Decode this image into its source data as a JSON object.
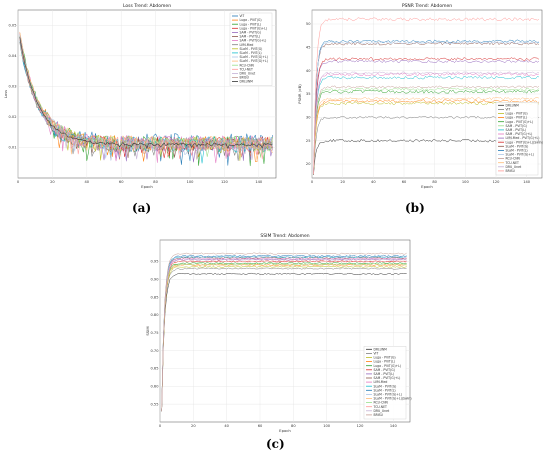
{
  "chart_data": [
    {
      "id": "a",
      "type": "line",
      "title": "Loss Trend: Abdomen",
      "xlabel": "Epoch",
      "ylabel": "Loss",
      "xlim": [
        0,
        150
      ],
      "ylim": [
        0.0,
        0.055
      ],
      "xticks": [
        0,
        20,
        40,
        60,
        80,
        100,
        120,
        140
      ],
      "yticks": [
        0.01,
        0.02,
        0.03,
        0.04,
        0.05
      ],
      "ytick_labels": [
        "0.01",
        "0.02",
        "0.03",
        "0.04",
        "0.05"
      ],
      "grid": true,
      "legend_position": "top-right",
      "series": [
        {
          "name": "ViT",
          "color": "#1f77b4",
          "start": 0.045,
          "final": 0.0115,
          "noise": 0.003
        },
        {
          "name": "Luga - PViT(G)",
          "color": "#ff7f0e",
          "start": 0.046,
          "final": 0.0112,
          "noise": 0.0025
        },
        {
          "name": "Luga - PViT(L)",
          "color": "#2ca02c",
          "start": 0.047,
          "final": 0.011,
          "noise": 0.0028
        },
        {
          "name": "Luga - PViT(G)+L)",
          "color": "#d62728",
          "start": 0.046,
          "final": 0.0113,
          "noise": 0.0022
        },
        {
          "name": "SAM - PViT(G)",
          "color": "#9467bd",
          "start": 0.045,
          "final": 0.0111,
          "noise": 0.0024
        },
        {
          "name": "SAM - PViT(L)",
          "color": "#8c564b",
          "start": 0.046,
          "final": 0.0109,
          "noise": 0.002
        },
        {
          "name": "SAM - PViT(G)+L)",
          "color": "#e377c2",
          "start": 0.047,
          "final": 0.0112,
          "noise": 0.0026
        },
        {
          "name": "LVM-Med",
          "color": "#7f7f7f",
          "start": 0.044,
          "final": 0.0108,
          "noise": 0.002
        },
        {
          "name": "SLaM - PViT(G)",
          "color": "#bcbd22",
          "start": 0.046,
          "final": 0.0112,
          "noise": 0.0023
        },
        {
          "name": "SLaM - PViT(L)",
          "color": "#17becf",
          "start": 0.045,
          "final": 0.011,
          "noise": 0.0025
        },
        {
          "name": "SLaM - PViT(G)+L)",
          "color": "#aec7e8",
          "start": 0.046,
          "final": 0.0111,
          "noise": 0.0022
        },
        {
          "name": "SLaM - PViT(G)+L)",
          "color": "#ffbb78",
          "start": 0.047,
          "final": 0.0113,
          "noise": 0.0024
        },
        {
          "name": "RCU-CNN",
          "color": "#98df8a",
          "start": 0.046,
          "final": 0.0114,
          "noise": 0.0021
        },
        {
          "name": "TCU-NET",
          "color": "#ff9896",
          "start": 0.045,
          "final": 0.0112,
          "noise": 0.002
        },
        {
          "name": "DRU_Unet",
          "color": "#c5b0d5",
          "start": 0.046,
          "final": 0.0111,
          "noise": 0.0022
        },
        {
          "name": "BRISU",
          "color": "#c49c94",
          "start": 0.045,
          "final": 0.0112,
          "noise": 0.0021
        },
        {
          "name": "DRLUNM",
          "color": "#333333",
          "start": 0.046,
          "final": 0.011,
          "noise": 0.0005
        }
      ]
    },
    {
      "id": "b",
      "type": "line",
      "title": "PSNR Trend: Abdomen",
      "xlabel": "Epoch",
      "ylabel": "PSNR (dB)",
      "xlim": [
        0,
        150
      ],
      "ylim": [
        17,
        53
      ],
      "xticks": [
        0,
        20,
        40,
        60,
        80,
        100,
        120,
        140
      ],
      "yticks": [
        20,
        25,
        30,
        35,
        40,
        45,
        50
      ],
      "ytick_labels": [
        "20",
        "25",
        "30",
        "35",
        "40",
        "45",
        "50"
      ],
      "grid": true,
      "legend_position": "bottom-right",
      "series": [
        {
          "name": "DRLUNM",
          "color": "#333333",
          "start": 18,
          "final": 25,
          "noise": 0.3
        },
        {
          "name": "ViT",
          "color": "#7f7f7f",
          "start": 18,
          "final": 30,
          "noise": 0.25
        },
        {
          "name": "Luga - PViT(G)",
          "color": "#bcbd22",
          "start": 18,
          "final": 33,
          "noise": 0.3
        },
        {
          "name": "Luga - PViT(L)",
          "color": "#ff7f0e",
          "start": 18,
          "final": 33.5,
          "noise": 0.3
        },
        {
          "name": "Luga - PViT(G)+L)",
          "color": "#2ca02c",
          "start": 18,
          "final": 35.5,
          "noise": 0.35
        },
        {
          "name": "SAM - PViT(G)",
          "color": "#98df8a",
          "start": 18,
          "final": 36,
          "noise": 0.3
        },
        {
          "name": "SAM - PViT(L)",
          "color": "#17becf",
          "start": 18,
          "final": 38.5,
          "noise": 0.3
        },
        {
          "name": "SAM - PViT(G)+L)",
          "color": "#e377c2",
          "start": 18,
          "final": 39.2,
          "noise": 0.3
        },
        {
          "name": "LVM-Med - PViT(G)+L)",
          "color": "#9467bd",
          "start": 18,
          "final": 42,
          "noise": 0.3
        },
        {
          "name": "Luga - PViT(G)+L)(Swin)",
          "color": "#d62728",
          "start": 18,
          "final": 42.5,
          "noise": 0.3
        },
        {
          "name": "SLaM - PViT(G)",
          "color": "#8c564b",
          "start": 18,
          "final": 45.8,
          "noise": 0.3
        },
        {
          "name": "SLaM - PViT(L)",
          "color": "#1f77b4",
          "start": 18,
          "final": 46.3,
          "noise": 0.3
        },
        {
          "name": "SLaM - PViT(G)+L)",
          "color": "#aec7e8",
          "start": 18,
          "final": 46,
          "noise": 0.25
        },
        {
          "name": "RCU-CNN",
          "color": "#c49c94",
          "start": 18,
          "final": 36.5,
          "noise": 0.25
        },
        {
          "name": "TCU-NET",
          "color": "#ffbb78",
          "start": 18,
          "final": 34,
          "noise": 0.25
        },
        {
          "name": "DRU_Unet",
          "color": "#c5b0d5",
          "start": 18,
          "final": 39.5,
          "noise": 0.25
        },
        {
          "name": "BRISU",
          "color": "#ff9896",
          "start": 18,
          "final": 51,
          "noise": 0.35
        }
      ]
    },
    {
      "id": "c",
      "type": "line",
      "title": "SSIM Trend: Abdomen",
      "xlabel": "Epoch",
      "ylabel": "SSIM",
      "xlim": [
        0,
        150
      ],
      "ylim": [
        0.5,
        1.01
      ],
      "xticks": [
        0,
        20,
        40,
        60,
        80,
        100,
        120,
        140
      ],
      "yticks": [
        0.55,
        0.6,
        0.65,
        0.7,
        0.75,
        0.8,
        0.85,
        0.9,
        0.95
      ],
      "ytick_labels": [
        "0.55",
        "0.60",
        "0.65",
        "0.70",
        "0.75",
        "0.80",
        "0.85",
        "0.90",
        "0.95"
      ],
      "grid": true,
      "legend_position": "lower-right",
      "series": [
        {
          "name": "DRLUNM",
          "color": "#333333",
          "start": 0.53,
          "final": 0.915,
          "noise": 0.002
        },
        {
          "name": "ViT",
          "color": "#7f7f7f",
          "start": 0.53,
          "final": 0.93,
          "noise": 0.002
        },
        {
          "name": "Luga - PViT(G)",
          "color": "#bcbd22",
          "start": 0.53,
          "final": 0.935,
          "noise": 0.002
        },
        {
          "name": "Luga - PViT(L)",
          "color": "#ff7f0e",
          "start": 0.53,
          "final": 0.94,
          "noise": 0.002
        },
        {
          "name": "Luga - PViT(G)+L)",
          "color": "#2ca02c",
          "start": 0.53,
          "final": 0.945,
          "noise": 0.002
        },
        {
          "name": "SAM - PViT(G)",
          "color": "#d62728",
          "start": 0.53,
          "final": 0.95,
          "noise": 0.002
        },
        {
          "name": "SAM - PViT(L)",
          "color": "#9467bd",
          "start": 0.53,
          "final": 0.955,
          "noise": 0.002
        },
        {
          "name": "SAM - PViT(G)+L)",
          "color": "#8c564b",
          "start": 0.53,
          "final": 0.96,
          "noise": 0.002
        },
        {
          "name": "LVM-Med",
          "color": "#e377c2",
          "start": 0.53,
          "final": 0.958,
          "noise": 0.002
        },
        {
          "name": "SLaM - PViT(G)",
          "color": "#17becf",
          "start": 0.53,
          "final": 0.962,
          "noise": 0.002
        },
        {
          "name": "SLaM - PViT(L)",
          "color": "#1f77b4",
          "start": 0.53,
          "final": 0.965,
          "noise": 0.002
        },
        {
          "name": "SLaM - PViT(G)+L)",
          "color": "#aec7e8",
          "start": 0.53,
          "final": 0.963,
          "noise": 0.002
        },
        {
          "name": "SLaM - PViT(G)+L)(Swin)",
          "color": "#ffbb78",
          "start": 0.53,
          "final": 0.94,
          "noise": 0.002
        },
        {
          "name": "RCU-CNN",
          "color": "#98df8a",
          "start": 0.53,
          "final": 0.942,
          "noise": 0.002
        },
        {
          "name": "TCU-NET",
          "color": "#ff9896",
          "start": 0.53,
          "final": 0.95,
          "noise": 0.002
        },
        {
          "name": "DRU_Unet",
          "color": "#c5b0d5",
          "start": 0.53,
          "final": 0.955,
          "noise": 0.002
        },
        {
          "name": "BRISU",
          "color": "#c49c94",
          "start": 0.53,
          "final": 0.972,
          "noise": 0.002
        }
      ]
    }
  ],
  "captions": {
    "a": "(a)",
    "b": "(b)",
    "c": "(c)"
  }
}
